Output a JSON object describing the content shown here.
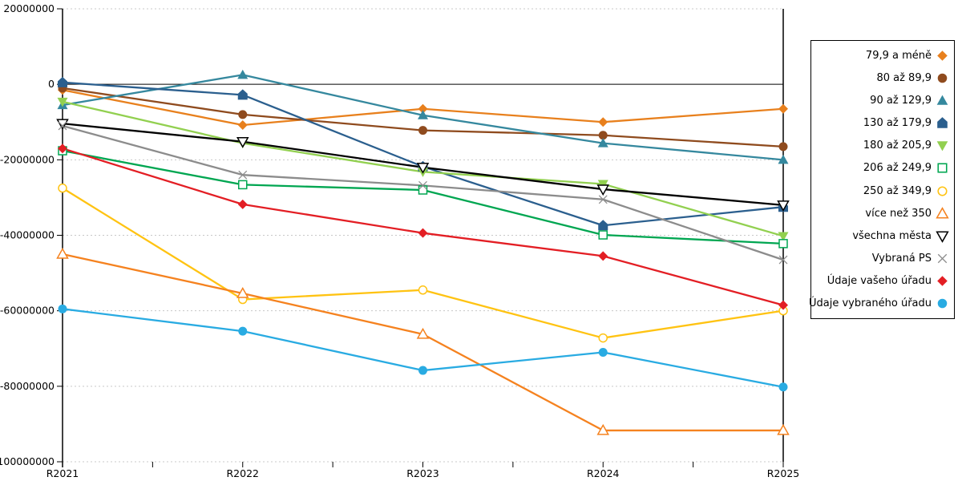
{
  "chart_data": {
    "type": "line",
    "title": "",
    "xlabel": "",
    "ylabel": "",
    "grid": "dotted-horizontal",
    "legend_position": "right-outside-boxed",
    "x": [
      "R2021",
      "R2022",
      "R2023",
      "R2024",
      "R2025"
    ],
    "y_axis": {
      "min": -100000000,
      "max": 20000000,
      "tick_step": 20000000,
      "tick_labels": [
        "20000000",
        "0",
        "-20000000",
        "-40000000",
        "-60000000",
        "-80000000",
        "-100000000"
      ],
      "zero_line": "solid-black"
    },
    "series": [
      {
        "label": "79,9 a méně",
        "color": "#E8801D",
        "marker": "diamond",
        "fill": "filled",
        "values": [
          -1500000,
          -10800000,
          -6500000,
          -10000000,
          -6500000
        ]
      },
      {
        "label": "80 až 89,9",
        "color": "#8F4B1E",
        "marker": "circle",
        "fill": "filled",
        "values": [
          -1000000,
          -8000000,
          -12200000,
          -13500000,
          -16500000
        ]
      },
      {
        "label": "90 až 129,9",
        "color": "#35889E",
        "marker": "triangle-up",
        "fill": "filled",
        "values": [
          -5500000,
          2500000,
          -8200000,
          -15600000,
          -20000000
        ]
      },
      {
        "label": "130 až 179,9",
        "color": "#2B5F8E",
        "marker": "pentagon",
        "fill": "filled",
        "values": [
          500000,
          -2800000,
          -21800000,
          -37400000,
          -32500000
        ]
      },
      {
        "label": "180 až 205,9",
        "color": "#92D050",
        "marker": "triangle-down",
        "fill": "filled",
        "values": [
          -4600000,
          -15600000,
          -23200000,
          -26400000,
          -40200000
        ]
      },
      {
        "label": "206 až 249,9",
        "color": "#00A651",
        "marker": "square",
        "fill": "open",
        "values": [
          -17600000,
          -26600000,
          -28000000,
          -39900000,
          -42200000
        ]
      },
      {
        "label": "250 až 349,9",
        "color": "#FFC312",
        "marker": "circle",
        "fill": "open",
        "values": [
          -27500000,
          -57000000,
          -54500000,
          -67200000,
          -60000000
        ]
      },
      {
        "label": "více než 350",
        "color": "#F5821F",
        "marker": "triangle-up",
        "fill": "open",
        "values": [
          -45000000,
          -55400000,
          -66200000,
          -91700000,
          -91700000
        ]
      },
      {
        "label": "všechna města",
        "color": "#000000",
        "marker": "triangle-down",
        "fill": "open",
        "values": [
          -10400000,
          -15200000,
          -22000000,
          -27800000,
          -32000000
        ]
      },
      {
        "label": "Vybraná PS",
        "color": "#8C8C8C",
        "marker": "x",
        "fill": "open",
        "values": [
          -11000000,
          -24000000,
          -26800000,
          -30500000,
          -46500000
        ]
      },
      {
        "label": "Údaje vašeho úřadu",
        "color": "#E31E24",
        "marker": "diamond",
        "fill": "filled",
        "values": [
          -17000000,
          -31800000,
          -39400000,
          -45500000,
          -58500000
        ]
      },
      {
        "label": "Údaje vybraného úřadu",
        "color": "#29ABE2",
        "marker": "circle",
        "fill": "filled",
        "values": [
          -59500000,
          -65400000,
          -75800000,
          -71000000,
          -80200000
        ]
      }
    ]
  }
}
